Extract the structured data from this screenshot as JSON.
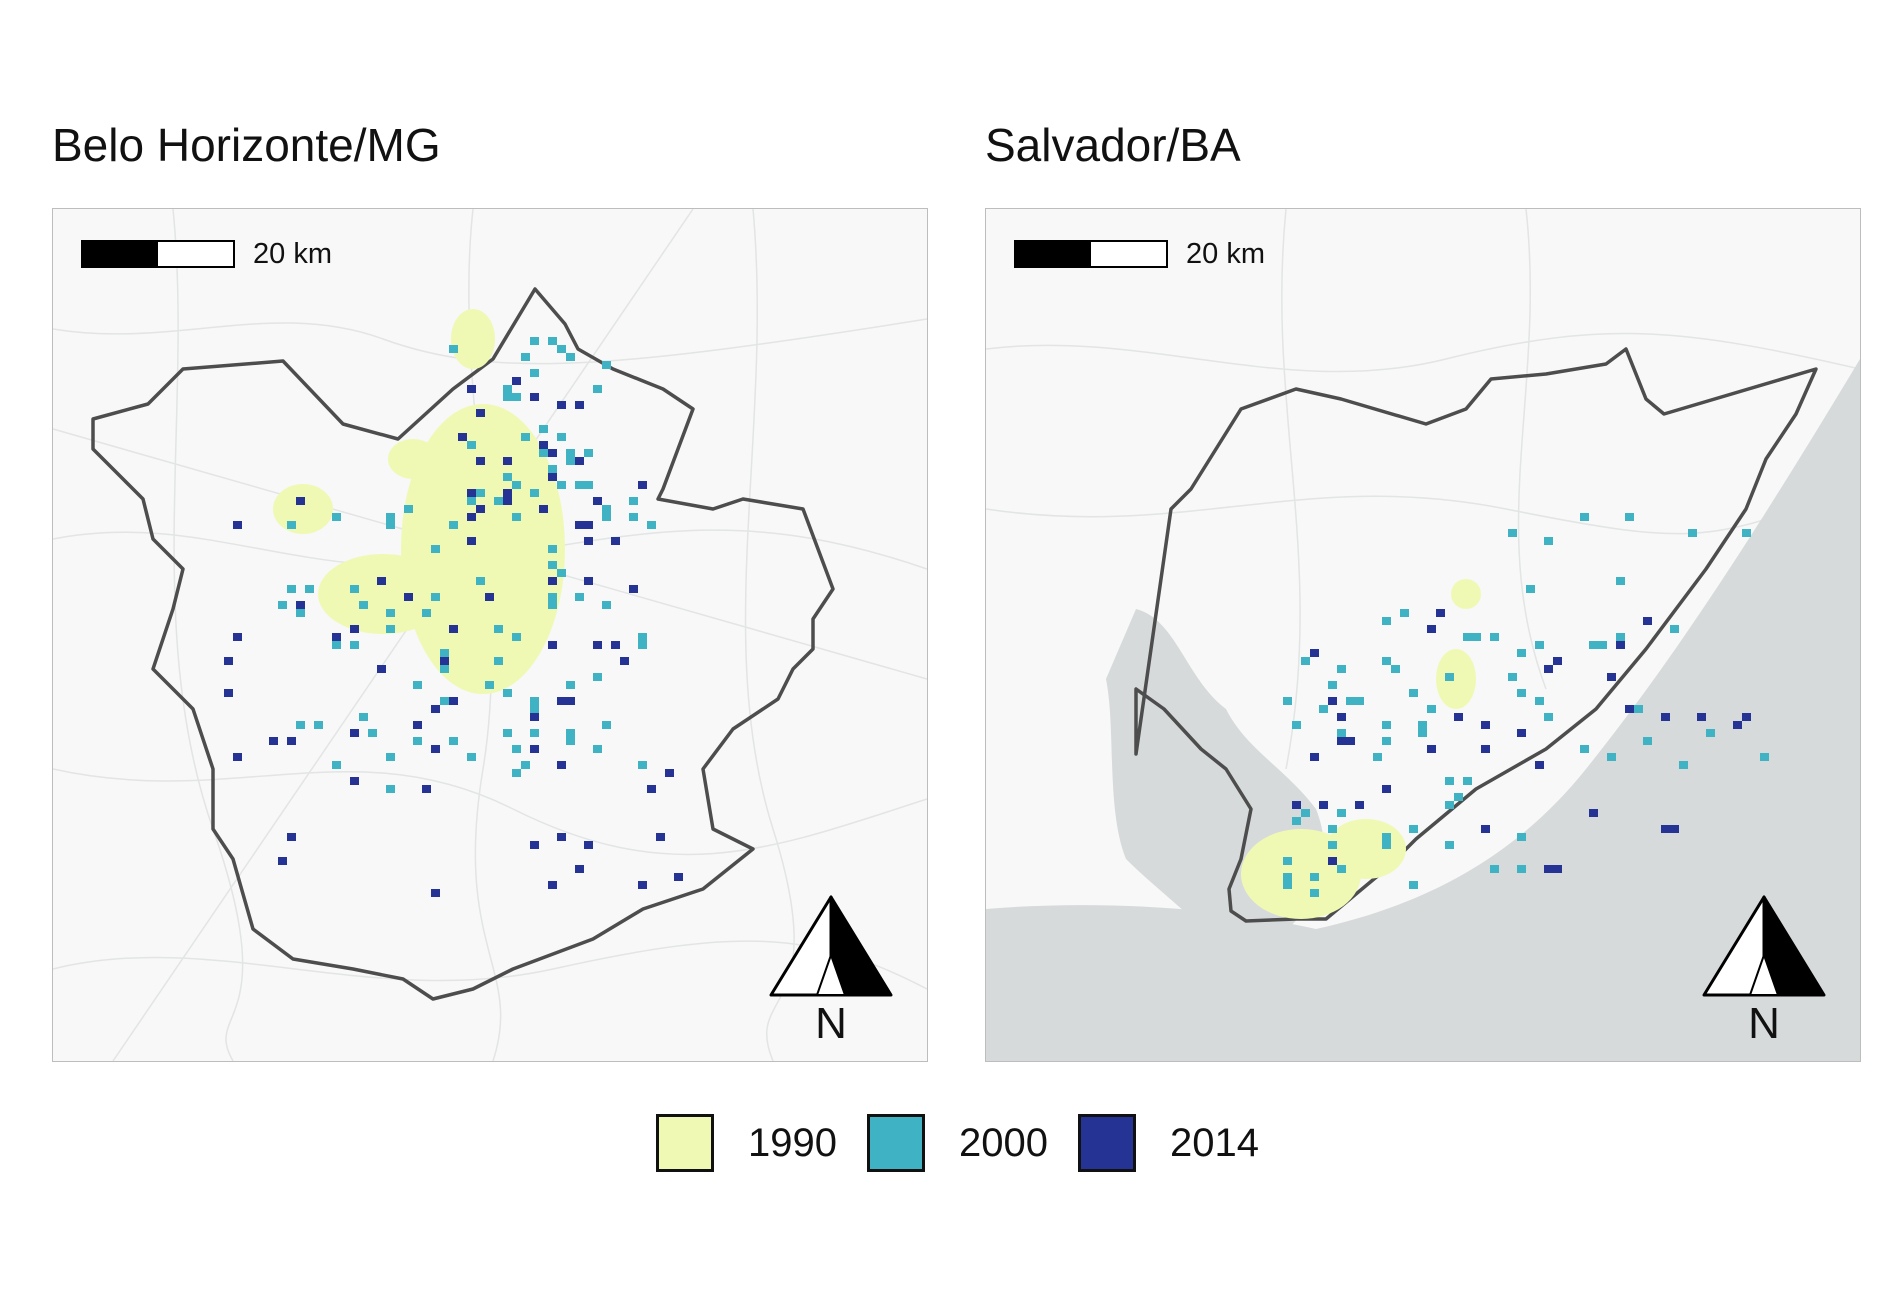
{
  "panels": [
    {
      "title": "Belo Horizonte/MG",
      "scale_label": "20 km",
      "north_label": "N"
    },
    {
      "title": "Salvador/BA",
      "scale_label": "20 km",
      "north_label": "N"
    }
  ],
  "legend": {
    "items": [
      {
        "label": "1990",
        "color": "#f0f9b3"
      },
      {
        "label": "2000",
        "color": "#3fb3c4"
      },
      {
        "label": "2014",
        "color": "#253494"
      }
    ]
  },
  "colors": {
    "land": "#f7f8f7",
    "water": "#d6dadb",
    "boundary": "#4a4a4a",
    "roads": "#e3e6e5"
  }
}
